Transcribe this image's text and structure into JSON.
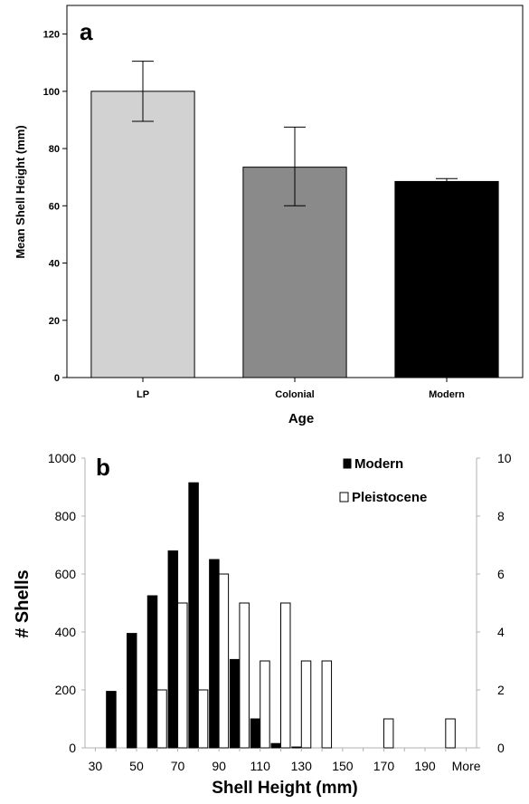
{
  "chart_data": [
    {
      "panel_label": "a",
      "type": "bar",
      "xlabel": "Age",
      "ylabel": "Mean Shell Height (mm)",
      "categories": [
        "LP",
        "Colonial",
        "Modern"
      ],
      "values": [
        100,
        73.5,
        68.5
      ],
      "error_low": [
        89.5,
        60,
        68
      ],
      "error_high": [
        110.5,
        87.5,
        69.5
      ],
      "ylim": [
        0,
        130
      ],
      "yticks": [
        "0",
        "20",
        "40",
        "60",
        "80",
        "100",
        "120"
      ],
      "bar_colors": [
        "#d2d2d2",
        "#8a8a8a",
        "#000000"
      ],
      "grid": false
    },
    {
      "panel_label": "b",
      "type": "bar",
      "xlabel": "Shell Height (mm)",
      "ylabel": "# Shells",
      "categories": [
        "30",
        "40",
        "50",
        "60",
        "70",
        "80",
        "90",
        "100",
        "110",
        "120",
        "130",
        "140",
        "150",
        "160",
        "170",
        "180",
        "190",
        "200",
        "More"
      ],
      "tick_labels": [
        "30",
        "",
        "50",
        "",
        "70",
        "",
        "90",
        "",
        "110",
        "",
        "130",
        "",
        "150",
        "",
        "170",
        "",
        "190",
        "",
        "More"
      ],
      "series": [
        {
          "name": "Modern",
          "axis": "left",
          "color": "#000000",
          "values": [
            0,
            195,
            395,
            525,
            680,
            915,
            650,
            305,
            100,
            15,
            3,
            0,
            0,
            0,
            0,
            0,
            0,
            0,
            0
          ]
        },
        {
          "name": "Pleistocene",
          "axis": "right",
          "color": "#ffffff",
          "values": [
            0,
            0,
            0,
            2,
            5,
            2,
            6,
            5,
            3,
            5,
            3,
            3,
            0,
            0,
            1,
            0,
            0,
            1,
            0
          ]
        }
      ],
      "ylim_left": [
        0,
        1000
      ],
      "yticks_left": [
        "0",
        "200",
        "400",
        "600",
        "800",
        "1000"
      ],
      "ylim_right": [
        0,
        10
      ],
      "yticks_right": [
        "0",
        "2",
        "4",
        "6",
        "8",
        "10"
      ],
      "legend_position": "top-right",
      "grid": false
    }
  ]
}
